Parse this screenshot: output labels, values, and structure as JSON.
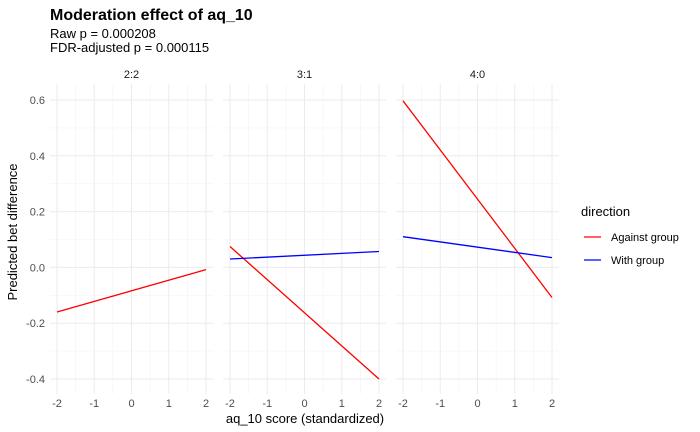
{
  "chart_data": {
    "type": "line",
    "title": "Moderation effect of aq_10",
    "subtitle": [
      "Raw p = 0.000208",
      "FDR-adjusted p = 0.000115"
    ],
    "xlabel": "aq_10 score (standardized)",
    "ylabel": "Predicted bet difference",
    "xlim": [
      -2,
      2
    ],
    "ylim": [
      -0.4,
      0.6
    ],
    "xticks": [
      -2,
      -1,
      0,
      1,
      2
    ],
    "yticks": [
      -0.4,
      -0.2,
      0.0,
      0.2,
      0.4,
      0.6
    ],
    "ytick_labels": [
      "-0.4",
      "-0.2",
      "0.0",
      "0.2",
      "0.4",
      "0.6"
    ],
    "grid": true,
    "legend": {
      "title": "direction",
      "placement": "right",
      "entries": [
        {
          "label": "Against group",
          "color": "#ff0000"
        },
        {
          "label": "With group",
          "color": "#0000ff"
        }
      ]
    },
    "facets": [
      {
        "label": "2:2",
        "series": [
          {
            "name": "Against group",
            "color": "#ff0000",
            "x": [
              -2,
              2
            ],
            "y": [
              -0.16,
              -0.008
            ]
          }
        ]
      },
      {
        "label": "3:1",
        "series": [
          {
            "name": "Against group",
            "color": "#ff0000",
            "x": [
              -2,
              2
            ],
            "y": [
              0.075,
              -0.4
            ]
          },
          {
            "name": "With group",
            "color": "#0000ff",
            "x": [
              -2,
              2
            ],
            "y": [
              0.03,
              0.057
            ]
          }
        ]
      },
      {
        "label": "4:0",
        "series": [
          {
            "name": "Against group",
            "color": "#ff0000",
            "x": [
              -2,
              2
            ],
            "y": [
              0.597,
              -0.108
            ]
          },
          {
            "name": "With group",
            "color": "#0000ff",
            "x": [
              -2,
              2
            ],
            "y": [
              0.11,
              0.035
            ]
          }
        ]
      }
    ]
  }
}
